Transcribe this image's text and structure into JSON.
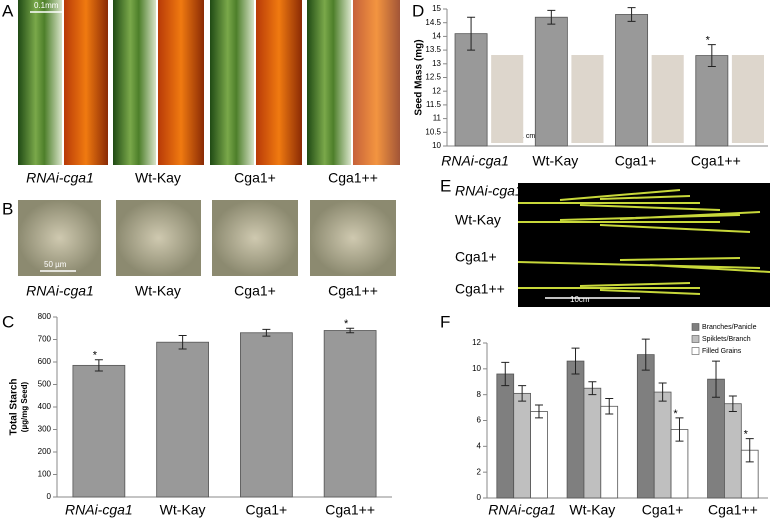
{
  "panel_labels": [
    "A",
    "B",
    "C",
    "D",
    "E",
    "F"
  ],
  "panel_a": {
    "labels": [
      "RNAi-cga1",
      "Wt-Kay",
      "Cga1+",
      "Cga1++"
    ],
    "scale": "0.1mm"
  },
  "panel_b": {
    "labels": [
      "RNAi-cga1",
      "Wt-Kay",
      "Cga1+",
      "Cga1++"
    ],
    "scale": "50 µm"
  },
  "panel_e": {
    "labels": [
      "RNAi-cga1",
      "Wt-Kay",
      "Cga1+",
      "Cga1++"
    ],
    "scale": "10cm"
  },
  "panel_d_scale": "1 cm",
  "chart_data": [
    {
      "type": "bar",
      "ylabel": "Total Starch",
      "ylabel_unit": "(µg/mg Seed)",
      "categories": [
        "RNAi-cga1",
        "Wt-Kay",
        "Cga1+",
        "Cga1++"
      ],
      "values": [
        585,
        688,
        730,
        740
      ],
      "errors": [
        25,
        30,
        15,
        10
      ],
      "significance": [
        "*",
        null,
        null,
        "*"
      ],
      "color": "#999999",
      "ylim": [
        0,
        800
      ],
      "yticks": [
        0,
        100,
        200,
        300,
        400,
        500,
        600,
        700,
        800
      ]
    },
    {
      "type": "bar",
      "ylabel": "Seed Mass (mg)",
      "categories": [
        "RNAi-cga1",
        "Wt-Kay",
        "Cga1+",
        "Cga1++"
      ],
      "values": [
        14.1,
        14.7,
        14.8,
        13.3
      ],
      "errors": [
        0.6,
        0.25,
        0.25,
        0.4
      ],
      "significance": [
        null,
        null,
        null,
        "*"
      ],
      "color": "#999999",
      "ylim": [
        10,
        15
      ],
      "yticks": [
        10,
        10.5,
        11,
        11.5,
        12,
        12.5,
        13,
        13.5,
        14,
        14.5,
        15
      ]
    },
    {
      "type": "bar",
      "categories": [
        "RNAi-cga1",
        "Wt-Kay",
        "Cga1+",
        "Cga1++"
      ],
      "legend": "top right",
      "series": [
        {
          "name": "Branches/Panicle",
          "color": "#7f7f7f",
          "values": [
            9.6,
            10.6,
            11.1,
            9.2
          ],
          "errors": [
            0.9,
            1.0,
            1.2,
            1.4
          ],
          "significance": [
            null,
            null,
            null,
            null
          ]
        },
        {
          "name": "Spiklets/Branch",
          "color": "#bfbfbf",
          "values": [
            8.1,
            8.5,
            8.2,
            7.3
          ],
          "errors": [
            0.6,
            0.5,
            0.7,
            0.6
          ],
          "significance": [
            null,
            null,
            null,
            null
          ]
        },
        {
          "name": "Filled Grains",
          "color": "#ffffff",
          "values": [
            6.7,
            7.1,
            5.3,
            3.7
          ],
          "errors": [
            0.5,
            0.6,
            0.9,
            0.9
          ],
          "significance": [
            null,
            null,
            "*",
            "*"
          ]
        }
      ],
      "ylim": [
        0,
        12
      ],
      "yticks": [
        0,
        2,
        4,
        6,
        8,
        10,
        12
      ]
    }
  ]
}
